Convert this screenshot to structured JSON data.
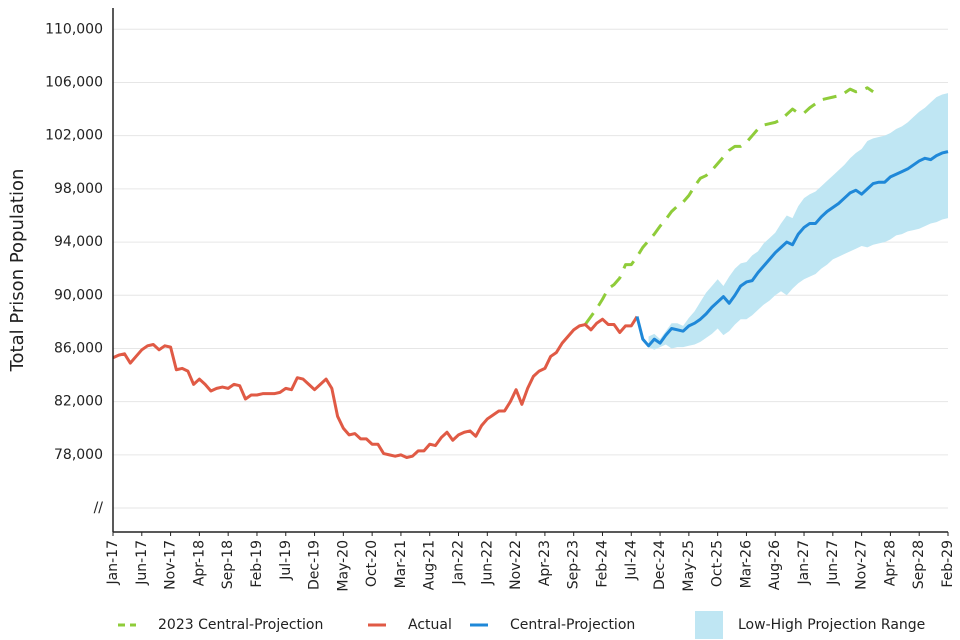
{
  "chart_data": {
    "type": "line",
    "ylabel": "Total Prison Population",
    "categories": [
      "Jan-17",
      null,
      null,
      null,
      null,
      "Jun-17",
      null,
      null,
      null,
      null,
      "Nov-17",
      null,
      null,
      null,
      null,
      "Apr-18",
      null,
      null,
      null,
      null,
      "Sep-18",
      null,
      null,
      null,
      null,
      "Feb-19",
      null,
      null,
      null,
      null,
      "Jul-19",
      null,
      null,
      null,
      null,
      "Dec-19",
      null,
      null,
      null,
      null,
      "May-20",
      null,
      null,
      null,
      null,
      "Oct-20",
      null,
      null,
      null,
      null,
      "Mar-21",
      null,
      null,
      null,
      null,
      "Aug-21",
      null,
      null,
      null,
      null,
      "Jan-22",
      null,
      null,
      null,
      null,
      "Jun-22",
      null,
      null,
      null,
      null,
      "Nov-22",
      null,
      null,
      null,
      null,
      "Apr-23",
      null,
      null,
      null,
      null,
      "Sep-23",
      null,
      null,
      null,
      null,
      "Feb-24",
      null,
      null,
      null,
      null,
      "Jul-24",
      null,
      null,
      null,
      null,
      "Dec-24",
      null,
      null,
      null,
      null,
      "May-25",
      null,
      null,
      null,
      null,
      "Oct-25",
      null,
      null,
      null,
      null,
      "Mar-26",
      null,
      null,
      null,
      null,
      "Aug-26",
      null,
      null,
      null,
      null,
      "Jan-27",
      null,
      null,
      null,
      null,
      "Jun-27",
      null,
      null,
      null,
      null,
      "Nov-27",
      null,
      null,
      null,
      null,
      "Apr-28",
      null,
      null,
      null,
      null,
      "Sep-28",
      null,
      null,
      null,
      null,
      "Feb-29"
    ],
    "ylim": [
      72200,
      111600
    ],
    "yticks": [
      {
        "value": 74000,
        "label": "//"
      },
      {
        "value": 78000,
        "label": "78,000"
      },
      {
        "value": 82000,
        "label": "82,000"
      },
      {
        "value": 86000,
        "label": "86,000"
      },
      {
        "value": 90000,
        "label": "90,000"
      },
      {
        "value": 94000,
        "label": "94,000"
      },
      {
        "value": 98000,
        "label": "98,000"
      },
      {
        "value": 102000,
        "label": "102,000"
      },
      {
        "value": 106000,
        "label": "106,000"
      },
      {
        "value": 110000,
        "label": "110,000"
      }
    ],
    "grid": true,
    "legend": "bottom",
    "series": [
      {
        "name": "2023 Central-Projection",
        "color": "#8fcc3a",
        "dashed": true,
        "values": [
          null,
          null,
          null,
          null,
          null,
          null,
          null,
          null,
          null,
          null,
          null,
          null,
          null,
          null,
          null,
          null,
          null,
          null,
          null,
          null,
          null,
          null,
          null,
          null,
          null,
          null,
          null,
          null,
          null,
          null,
          null,
          null,
          null,
          null,
          null,
          null,
          null,
          null,
          null,
          null,
          null,
          null,
          null,
          null,
          null,
          null,
          null,
          null,
          null,
          null,
          null,
          null,
          null,
          null,
          null,
          null,
          null,
          null,
          null,
          null,
          null,
          null,
          null,
          null,
          null,
          null,
          null,
          null,
          null,
          null,
          null,
          null,
          null,
          null,
          null,
          null,
          null,
          null,
          null,
          null,
          null,
          null,
          87800,
          88400,
          89000,
          89700,
          90500,
          90800,
          91300,
          92300,
          92300,
          92900,
          93600,
          94100,
          94600,
          95200,
          95700,
          96300,
          96700,
          97000,
          97500,
          98200,
          98800,
          99000,
          99400,
          99900,
          100400,
          100900,
          101200,
          101200,
          101500,
          102000,
          102500,
          102800,
          102900,
          103000,
          103200,
          103600,
          104000,
          103700,
          103700,
          104100,
          104400,
          104700,
          104800,
          104900,
          105000,
          105200,
          105500,
          105300,
          105400,
          105600,
          105300,
          null,
          null,
          null,
          null,
          null,
          null,
          null,
          null,
          null,
          null,
          null,
          null,
          null
        ]
      },
      {
        "name": "Actual",
        "color": "#e05a45",
        "values": [
          85300,
          85500,
          85600,
          84900,
          85400,
          85900,
          86200,
          86300,
          85900,
          86200,
          86100,
          84400,
          84500,
          84300,
          83300,
          83700,
          83300,
          82800,
          83000,
          83100,
          83000,
          83300,
          83200,
          82200,
          82500,
          82500,
          82600,
          82600,
          82600,
          82700,
          83000,
          82900,
          83800,
          83700,
          83300,
          82900,
          83300,
          83700,
          83000,
          80900,
          80000,
          79500,
          79600,
          79200,
          79200,
          78800,
          78800,
          78100,
          78000,
          77900,
          78000,
          77800,
          77900,
          78300,
          78300,
          78800,
          78700,
          79300,
          79700,
          79100,
          79500,
          79700,
          79800,
          79400,
          80200,
          80700,
          81000,
          81300,
          81300,
          82000,
          82900,
          81800,
          83000,
          83900,
          84300,
          84500,
          85400,
          85700,
          86400,
          86900,
          87400,
          87700,
          87800,
          87400,
          87900,
          88200,
          87800,
          87800,
          87200,
          87700,
          87700,
          88400,
          null,
          null,
          null,
          null,
          null,
          null,
          null,
          null,
          null,
          null,
          null,
          null,
          null,
          null,
          null,
          null,
          null,
          null,
          null,
          null,
          null,
          null,
          null,
          null,
          null,
          null,
          null,
          null,
          null,
          null,
          null,
          null,
          null,
          null,
          null,
          null,
          null,
          null,
          null,
          null,
          null,
          null,
          null,
          null,
          null,
          null,
          null,
          null,
          null,
          null,
          null,
          null,
          null,
          null
        ]
      },
      {
        "name": "Central-Projection",
        "color": "#1f88d8",
        "values": [
          null,
          null,
          null,
          null,
          null,
          null,
          null,
          null,
          null,
          null,
          null,
          null,
          null,
          null,
          null,
          null,
          null,
          null,
          null,
          null,
          null,
          null,
          null,
          null,
          null,
          null,
          null,
          null,
          null,
          null,
          null,
          null,
          null,
          null,
          null,
          null,
          null,
          null,
          null,
          null,
          null,
          null,
          null,
          null,
          null,
          null,
          null,
          null,
          null,
          null,
          null,
          null,
          null,
          null,
          null,
          null,
          null,
          null,
          null,
          null,
          null,
          null,
          null,
          null,
          null,
          null,
          null,
          null,
          null,
          null,
          null,
          null,
          null,
          null,
          null,
          null,
          null,
          null,
          null,
          null,
          null,
          null,
          null,
          null,
          null,
          null,
          null,
          null,
          null,
          null,
          null,
          88400,
          86700,
          86200,
          86700,
          86400,
          87000,
          87500,
          87400,
          87300,
          87700,
          87900,
          88200,
          88600,
          89100,
          89500,
          89900,
          89400,
          90000,
          90700,
          91000,
          91100,
          91700,
          92200,
          92700,
          93200,
          93600,
          94000,
          93800,
          94600,
          95100,
          95400,
          95400,
          95900,
          96300,
          96600,
          96900,
          97300,
          97700,
          97900,
          97600,
          98000,
          98400,
          98500,
          98500,
          98900,
          99100,
          99300,
          99500,
          99800,
          100100,
          100300,
          100200,
          100500,
          100700,
          100800
        ]
      },
      {
        "name": "Low-High Projection Range",
        "color": "#bfe6f3",
        "type": "range",
        "low": [
          null,
          null,
          null,
          null,
          null,
          null,
          null,
          null,
          null,
          null,
          null,
          null,
          null,
          null,
          null,
          null,
          null,
          null,
          null,
          null,
          null,
          null,
          null,
          null,
          null,
          null,
          null,
          null,
          null,
          null,
          null,
          null,
          null,
          null,
          null,
          null,
          null,
          null,
          null,
          null,
          null,
          null,
          null,
          null,
          null,
          null,
          null,
          null,
          null,
          null,
          null,
          null,
          null,
          null,
          null,
          null,
          null,
          null,
          null,
          null,
          null,
          null,
          null,
          null,
          null,
          null,
          null,
          null,
          null,
          null,
          null,
          null,
          null,
          null,
          null,
          null,
          null,
          null,
          null,
          null,
          null,
          null,
          null,
          null,
          null,
          null,
          null,
          null,
          null,
          null,
          null,
          null,
          null,
          86100,
          85900,
          86100,
          86300,
          86000,
          86100,
          86100,
          86200,
          86300,
          86500,
          86800,
          87100,
          87500,
          87000,
          87300,
          87800,
          88200,
          88200,
          88500,
          88900,
          89300,
          89600,
          90000,
          90300,
          90000,
          90500,
          90900,
          91200,
          91400,
          91600,
          92000,
          92300,
          92700,
          92900,
          93100,
          93300,
          93500,
          93700,
          93600,
          93800,
          93900,
          94000,
          94200,
          94500,
          94600,
          94800,
          94900,
          95000,
          95200,
          95400,
          95500,
          95700,
          95800
        ],
        "high": [
          null,
          null,
          null,
          null,
          null,
          null,
          null,
          null,
          null,
          null,
          null,
          null,
          null,
          null,
          null,
          null,
          null,
          null,
          null,
          null,
          null,
          null,
          null,
          null,
          null,
          null,
          null,
          null,
          null,
          null,
          null,
          null,
          null,
          null,
          null,
          null,
          null,
          null,
          null,
          null,
          null,
          null,
          null,
          null,
          null,
          null,
          null,
          null,
          null,
          null,
          null,
          null,
          null,
          null,
          null,
          null,
          null,
          null,
          null,
          null,
          null,
          null,
          null,
          null,
          null,
          null,
          null,
          null,
          null,
          null,
          null,
          null,
          null,
          null,
          null,
          null,
          null,
          null,
          null,
          null,
          null,
          null,
          null,
          null,
          null,
          null,
          null,
          null,
          null,
          null,
          null,
          null,
          null,
          86900,
          87100,
          86700,
          87300,
          87900,
          87900,
          87700,
          88300,
          88800,
          89500,
          90200,
          90700,
          91200,
          90700,
          91400,
          92000,
          92400,
          92500,
          93000,
          93300,
          93900,
          94300,
          94700,
          95400,
          96000,
          95800,
          96700,
          97300,
          97600,
          97800,
          98200,
          98600,
          99000,
          99400,
          99800,
          100300,
          100700,
          101000,
          101600,
          101800,
          101900,
          102000,
          102200,
          102500,
          102700,
          103000,
          103400,
          103800,
          104100,
          104500,
          104900,
          105100,
          105200
        ]
      }
    ]
  }
}
